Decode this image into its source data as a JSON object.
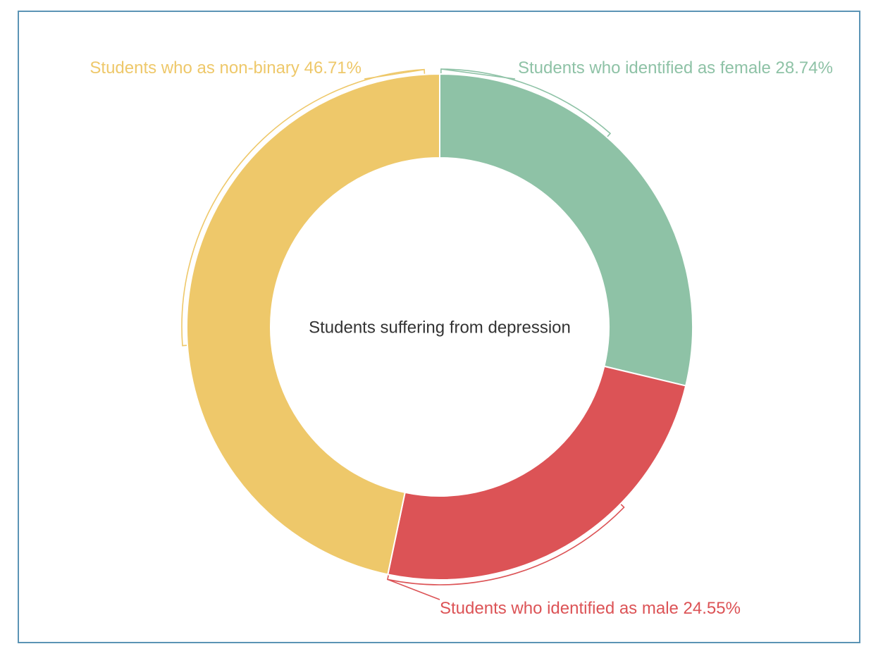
{
  "chart_data": {
    "type": "pie",
    "variant": "donut",
    "center_label": "Students suffering from depression",
    "categories": [
      "Students who identified as female",
      "Students who identified as male",
      "Students who as non-binary"
    ],
    "values": [
      28.74,
      24.55,
      46.71
    ],
    "value_labels": [
      "28.74%",
      "24.55%",
      "46.71%"
    ],
    "colors": [
      "#8ec2a6",
      "#dc5356",
      "#eec86a"
    ],
    "legend": "none"
  }
}
